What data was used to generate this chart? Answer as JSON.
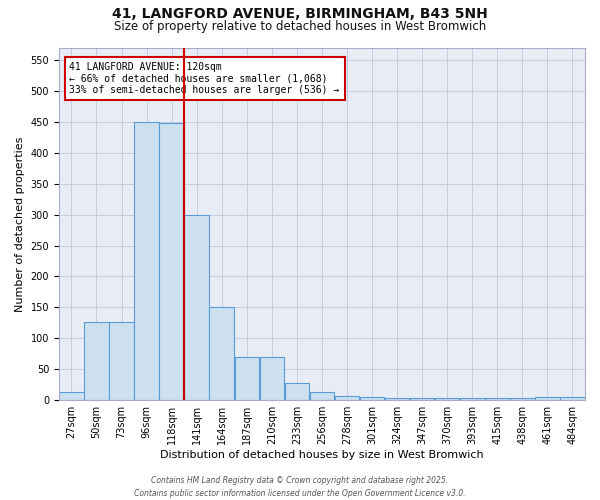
{
  "title_line1": "41, LANGFORD AVENUE, BIRMINGHAM, B43 5NH",
  "title_line2": "Size of property relative to detached houses in West Bromwich",
  "xlabel": "Distribution of detached houses by size in West Bromwich",
  "ylabel": "Number of detached properties",
  "annotation_line1": "41 LANGFORD AVENUE: 120sqm",
  "annotation_line2": "← 66% of detached houses are smaller (1,068)",
  "annotation_line3": "33% of semi-detached houses are larger (536) →",
  "bar_values": [
    13,
    126,
    126,
    450,
    448,
    300,
    150,
    70,
    70,
    28,
    13,
    7,
    5,
    4,
    4,
    3,
    3,
    3,
    3,
    5,
    5
  ],
  "bin_labels": [
    "27sqm",
    "50sqm",
    "73sqm",
    "96sqm",
    "118sqm",
    "141sqm",
    "164sqm",
    "187sqm",
    "210sqm",
    "233sqm",
    "256sqm",
    "278sqm",
    "301sqm",
    "324sqm",
    "347sqm",
    "370sqm",
    "393sqm",
    "415sqm",
    "438sqm",
    "461sqm",
    "484sqm"
  ],
  "bar_color": "#cce0f0",
  "bar_edge_color": "#5b9bd5",
  "vline_color": "#cc0000",
  "vline_bin_index": 4,
  "annotation_box_color": "#cc0000",
  "background_color": "#ffffff",
  "plot_bg_color": "#e8edf5",
  "grid_color": "#c5cde0",
  "ylim": [
    0,
    570
  ],
  "yticks": [
    0,
    50,
    100,
    150,
    200,
    250,
    300,
    350,
    400,
    450,
    500,
    550
  ],
  "title_fontsize": 10,
  "subtitle_fontsize": 8.5,
  "ylabel_fontsize": 8,
  "xlabel_fontsize": 8,
  "tick_fontsize": 7,
  "footer_text": "Contains HM Land Registry data © Crown copyright and database right 2025.\nContains public sector information licensed under the Open Government Licence v3.0."
}
